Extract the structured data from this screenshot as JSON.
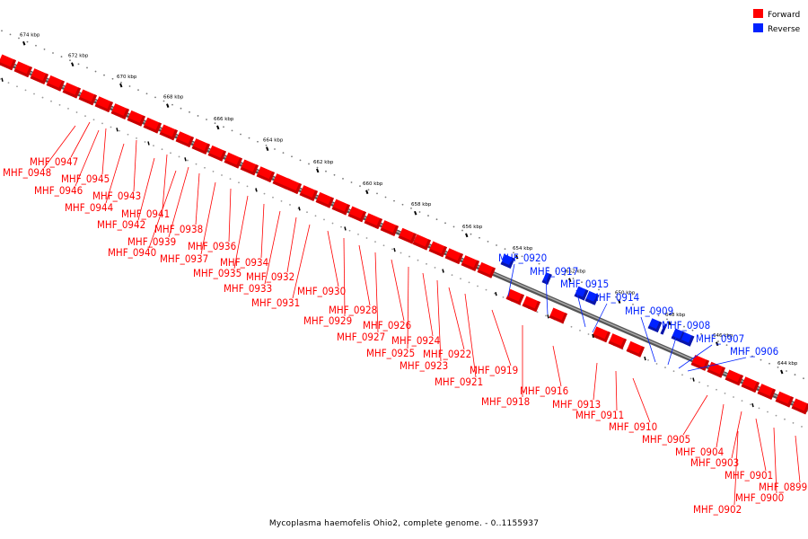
{
  "legend": [
    {
      "label": "Forward",
      "color": "#ff0000"
    },
    {
      "label": "Reverse",
      "color": "#0022ff"
    }
  ],
  "colors": {
    "forward": "#ff0000",
    "forward_dark": "#c80000",
    "reverse": "#0022ff",
    "reverse_dark": "#0a16a8",
    "backbone": "#888888"
  },
  "caption": "Mycoplasma haemofelis Ohio2, complete genome. - 0..1155937",
  "ticks": [
    "644 kbp",
    "646 kbp",
    "648 kbp",
    "650 kbp",
    "652 kbp",
    "654 kbp",
    "656 kbp",
    "658 kbp",
    "660 kbp",
    "662 kbp",
    "664 kbp",
    "666 kbp",
    "668 kbp",
    "670 kbp",
    "672 kbp",
    "674 kbp"
  ],
  "forward_genes": [
    "MHF_0948",
    "MHF_0947",
    "MHF_0946",
    "MHF_0945",
    "MHF_0944",
    "MHF_0943",
    "MHF_0942",
    "MHF_0941",
    "MHF_0940",
    "MHF_0939",
    "MHF_0938",
    "MHF_0937",
    "MHF_0936",
    "MHF_0935",
    "MHF_0934",
    "MHF_0933",
    "MHF_0932",
    "MHF_0931",
    "MHF_0930",
    "MHF_0929",
    "MHF_0928",
    "MHF_0927",
    "MHF_0926",
    "MHF_0925",
    "MHF_0924",
    "MHF_0923",
    "MHF_0922",
    "MHF_0921",
    "MHF_0919",
    "MHF_0918",
    "MHF_0916",
    "MHF_0913",
    "MHF_0911",
    "MHF_0910",
    "MHF_0905",
    "MHF_0904",
    "MHF_0903",
    "MHF_0902",
    "MHF_0901",
    "MHF_0900",
    "MHF_0899"
  ],
  "reverse_genes": [
    "MHF_0920",
    "MHF_0917",
    "MHF_0915",
    "MHF_0914",
    "MHF_0909",
    "MHF_0908",
    "MHF_0907",
    "MHF_0906"
  ]
}
